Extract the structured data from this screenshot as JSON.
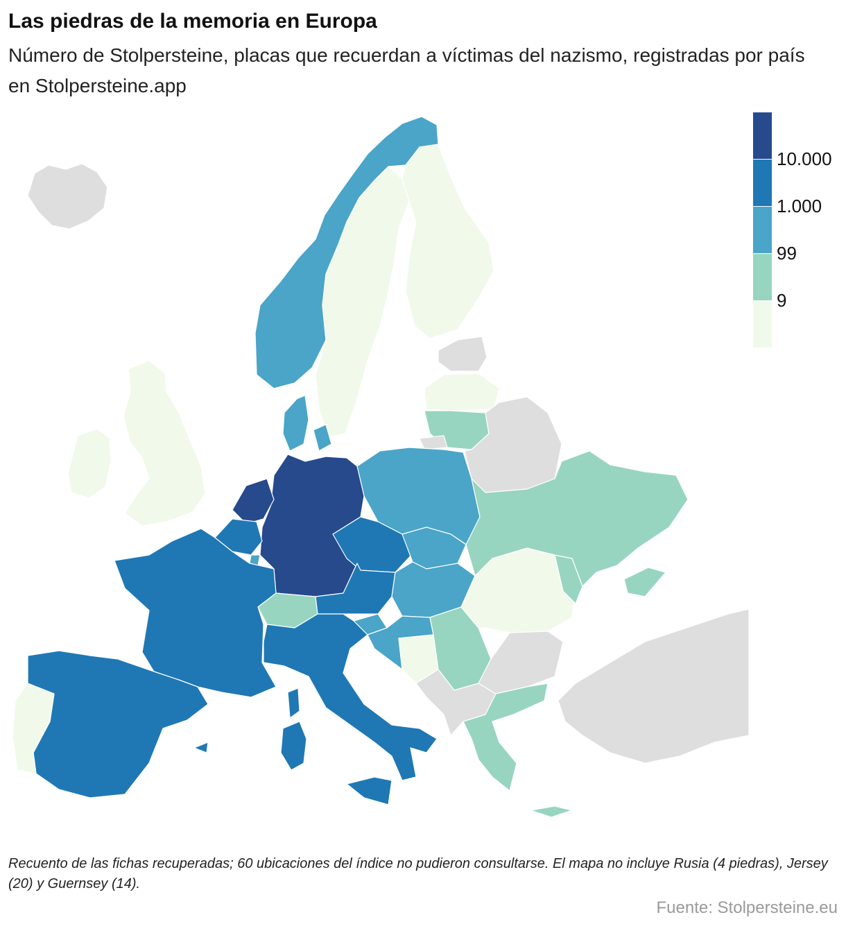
{
  "title": "Las piedras de la memoria en Europa",
  "subtitle": "Número de Stolpersteine, placas que recuerdan a víctimas del nazismo, registradas por país en Stolpersteine.app",
  "legend": {
    "bins": [
      {
        "color": "#264a8c"
      },
      {
        "color": "#1f78b4"
      },
      {
        "color": "#4aa5c8"
      },
      {
        "color": "#98d5c0"
      },
      {
        "color": "#f1f9eb"
      }
    ],
    "breaks": [
      "10.000",
      "1.000",
      "99",
      "9"
    ]
  },
  "colors": {
    "nodata": "#dedede",
    "bin1": "#f1f9eb",
    "bin2": "#98d5c0",
    "bin3": "#4aa5c8",
    "bin4": "#1f78b4",
    "bin5": "#264a8c",
    "border": "#ffffff"
  },
  "footnote": "Recuento de las fichas recuperadas; 60 ubicaciones del índice no pudieron consultarse. El mapa no incluye Rusia (4 piedras), Jersey (20) y Guernsey (14).",
  "source": "Fuente: Stolpersteine.eu"
}
